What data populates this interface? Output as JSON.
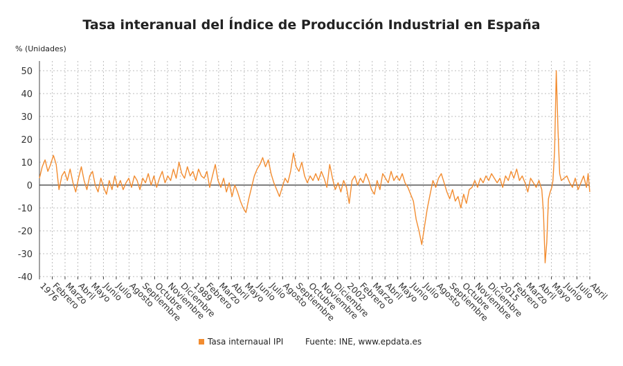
{
  "chart_data": {
    "type": "line",
    "title": "Tasa interanual del Índice de Producción Industrial en España",
    "ylabel": "% (Unidades)",
    "ylim": [
      -40,
      50
    ],
    "yticks": [
      50,
      40,
      30,
      20,
      10,
      0,
      -10,
      -20,
      -30,
      -40
    ],
    "xlim": [
      1975.0,
      2024.3
    ],
    "grid": true,
    "legend_position": "bottom",
    "source": "Fuente: INE, www.epdata.es",
    "x_tick_labels": [
      "1976",
      "Febrero",
      "Marzo",
      "Abril",
      "Mayo",
      "Junio",
      "Julio",
      "Agosto",
      "Septiembre",
      "Octubre",
      "Noviembre",
      "Diciembre",
      "1989",
      "Febrero",
      "Marzo",
      "Abril",
      "Mayo",
      "Junio",
      "Julio",
      "Agosto",
      "Septiembre",
      "Octubre",
      "Noviembre",
      "Diciembre",
      "2002",
      "Febrero",
      "Marzo",
      "Abril",
      "Mayo",
      "Junio",
      "Julio",
      "Agosto",
      "Septiembre",
      "Octubre",
      "Noviembre",
      "Diciembre",
      "2015",
      "Febrero",
      "Marzo",
      "Abril",
      "Mayo",
      "Junio",
      "Julio",
      "Abril"
    ],
    "series": [
      {
        "name": "Tasa internaual IPI",
        "color": "#f28c30",
        "points": [
          [
            1975.0,
            3
          ],
          [
            1975.25,
            8
          ],
          [
            1975.5,
            11
          ],
          [
            1975.75,
            6
          ],
          [
            1976.0,
            9
          ],
          [
            1976.25,
            13
          ],
          [
            1976.5,
            9
          ],
          [
            1976.75,
            -2
          ],
          [
            1977.0,
            4
          ],
          [
            1977.25,
            6
          ],
          [
            1977.5,
            2
          ],
          [
            1977.75,
            7
          ],
          [
            1978.0,
            1
          ],
          [
            1978.25,
            -3
          ],
          [
            1978.5,
            3
          ],
          [
            1978.75,
            8
          ],
          [
            1979.0,
            2
          ],
          [
            1979.25,
            -2
          ],
          [
            1979.5,
            4
          ],
          [
            1979.75,
            6
          ],
          [
            1980.0,
            0
          ],
          [
            1980.25,
            -3
          ],
          [
            1980.5,
            3
          ],
          [
            1980.75,
            -1
          ],
          [
            1981.0,
            -4
          ],
          [
            1981.25,
            2
          ],
          [
            1981.5,
            -2
          ],
          [
            1981.75,
            4
          ],
          [
            1982.0,
            -1
          ],
          [
            1982.25,
            2
          ],
          [
            1982.5,
            -2
          ],
          [
            1982.75,
            1
          ],
          [
            1983.0,
            3
          ],
          [
            1983.25,
            -1
          ],
          [
            1983.5,
            4
          ],
          [
            1983.75,
            2
          ],
          [
            1984.0,
            -2
          ],
          [
            1984.25,
            3
          ],
          [
            1984.5,
            1
          ],
          [
            1984.75,
            5
          ],
          [
            1985.0,
            0
          ],
          [
            1985.25,
            4
          ],
          [
            1985.5,
            -1
          ],
          [
            1985.75,
            3
          ],
          [
            1986.0,
            6
          ],
          [
            1986.25,
            1
          ],
          [
            1986.5,
            4
          ],
          [
            1986.75,
            2
          ],
          [
            1987.0,
            7
          ],
          [
            1987.25,
            3
          ],
          [
            1987.5,
            10
          ],
          [
            1987.75,
            5
          ],
          [
            1988.0,
            3
          ],
          [
            1988.25,
            8
          ],
          [
            1988.5,
            4
          ],
          [
            1988.75,
            6
          ],
          [
            1989.0,
            2
          ],
          [
            1989.25,
            7
          ],
          [
            1989.5,
            4
          ],
          [
            1989.75,
            3
          ],
          [
            1990.0,
            6
          ],
          [
            1990.25,
            -1
          ],
          [
            1990.5,
            4
          ],
          [
            1990.75,
            9
          ],
          [
            1991.0,
            2
          ],
          [
            1991.25,
            -1
          ],
          [
            1991.5,
            3
          ],
          [
            1991.75,
            -3
          ],
          [
            1992.0,
            1
          ],
          [
            1992.25,
            -5
          ],
          [
            1992.5,
            0
          ],
          [
            1992.75,
            -3
          ],
          [
            1993.0,
            -7
          ],
          [
            1993.25,
            -10
          ],
          [
            1993.5,
            -12
          ],
          [
            1993.75,
            -6
          ],
          [
            1994.0,
            -1
          ],
          [
            1994.25,
            4
          ],
          [
            1994.5,
            7
          ],
          [
            1994.75,
            9
          ],
          [
            1995.0,
            12
          ],
          [
            1995.25,
            8
          ],
          [
            1995.5,
            11
          ],
          [
            1995.75,
            5
          ],
          [
            1996.0,
            1
          ],
          [
            1996.25,
            -2
          ],
          [
            1996.5,
            -5
          ],
          [
            1996.75,
            -1
          ],
          [
            1997.0,
            3
          ],
          [
            1997.25,
            1
          ],
          [
            1997.5,
            6
          ],
          [
            1997.75,
            14
          ],
          [
            1998.0,
            8
          ],
          [
            1998.25,
            6
          ],
          [
            1998.5,
            10
          ],
          [
            1998.75,
            4
          ],
          [
            1999.0,
            1
          ],
          [
            1999.25,
            4
          ],
          [
            1999.5,
            2
          ],
          [
            1999.75,
            5
          ],
          [
            2000.0,
            2
          ],
          [
            2000.25,
            6
          ],
          [
            2000.5,
            3
          ],
          [
            2000.75,
            -1
          ],
          [
            2001.0,
            9
          ],
          [
            2001.25,
            3
          ],
          [
            2001.5,
            -2
          ],
          [
            2001.75,
            1
          ],
          [
            2002.0,
            -3
          ],
          [
            2002.25,
            2
          ],
          [
            2002.5,
            -1
          ],
          [
            2002.75,
            -8
          ],
          [
            2003.0,
            2
          ],
          [
            2003.25,
            4
          ],
          [
            2003.5,
            0
          ],
          [
            2003.75,
            3
          ],
          [
            2004.0,
            1
          ],
          [
            2004.25,
            5
          ],
          [
            2004.5,
            2
          ],
          [
            2004.75,
            -2
          ],
          [
            2005.0,
            -4
          ],
          [
            2005.25,
            2
          ],
          [
            2005.5,
            -2
          ],
          [
            2005.75,
            5
          ],
          [
            2006.0,
            3
          ],
          [
            2006.25,
            1
          ],
          [
            2006.5,
            6
          ],
          [
            2006.75,
            2
          ],
          [
            2007.0,
            4
          ],
          [
            2007.25,
            2
          ],
          [
            2007.5,
            5
          ],
          [
            2007.75,
            1
          ],
          [
            2008.0,
            -1
          ],
          [
            2008.25,
            -4
          ],
          [
            2008.5,
            -7
          ],
          [
            2008.75,
            -15
          ],
          [
            2009.0,
            -20
          ],
          [
            2009.25,
            -26
          ],
          [
            2009.5,
            -18
          ],
          [
            2009.75,
            -10
          ],
          [
            2010.0,
            -4
          ],
          [
            2010.25,
            2
          ],
          [
            2010.5,
            -1
          ],
          [
            2010.75,
            3
          ],
          [
            2011.0,
            5
          ],
          [
            2011.25,
            1
          ],
          [
            2011.5,
            -3
          ],
          [
            2011.75,
            -6
          ],
          [
            2012.0,
            -2
          ],
          [
            2012.25,
            -7
          ],
          [
            2012.5,
            -5
          ],
          [
            2012.75,
            -10
          ],
          [
            2013.0,
            -4
          ],
          [
            2013.25,
            -8
          ],
          [
            2013.5,
            -2
          ],
          [
            2013.75,
            -1
          ],
          [
            2014.0,
            2
          ],
          [
            2014.25,
            -1
          ],
          [
            2014.5,
            3
          ],
          [
            2014.75,
            1
          ],
          [
            2015.0,
            4
          ],
          [
            2015.25,
            2
          ],
          [
            2015.5,
            5
          ],
          [
            2015.75,
            3
          ],
          [
            2016.0,
            1
          ],
          [
            2016.25,
            3
          ],
          [
            2016.5,
            -1
          ],
          [
            2016.75,
            4
          ],
          [
            2017.0,
            2
          ],
          [
            2017.25,
            6
          ],
          [
            2017.5,
            3
          ],
          [
            2017.75,
            7
          ],
          [
            2018.0,
            2
          ],
          [
            2018.25,
            4
          ],
          [
            2018.5,
            1
          ],
          [
            2018.75,
            -3
          ],
          [
            2019.0,
            3
          ],
          [
            2019.25,
            1
          ],
          [
            2019.5,
            -1
          ],
          [
            2019.75,
            2
          ],
          [
            2020.0,
            -2
          ],
          [
            2020.15,
            -12
          ],
          [
            2020.3,
            -34
          ],
          [
            2020.45,
            -25
          ],
          [
            2020.6,
            -6
          ],
          [
            2020.75,
            -3
          ],
          [
            2020.9,
            -1
          ],
          [
            2021.0,
            2
          ],
          [
            2021.15,
            15
          ],
          [
            2021.3,
            50
          ],
          [
            2021.45,
            25
          ],
          [
            2021.6,
            5
          ],
          [
            2021.75,
            2
          ],
          [
            2022.0,
            3
          ],
          [
            2022.25,
            4
          ],
          [
            2022.5,
            1
          ],
          [
            2022.75,
            -1
          ],
          [
            2023.0,
            3
          ],
          [
            2023.25,
            -2
          ],
          [
            2023.5,
            1
          ],
          [
            2023.75,
            4
          ],
          [
            2024.0,
            -1
          ],
          [
            2024.15,
            5
          ],
          [
            2024.3,
            -3
          ]
        ]
      }
    ]
  }
}
